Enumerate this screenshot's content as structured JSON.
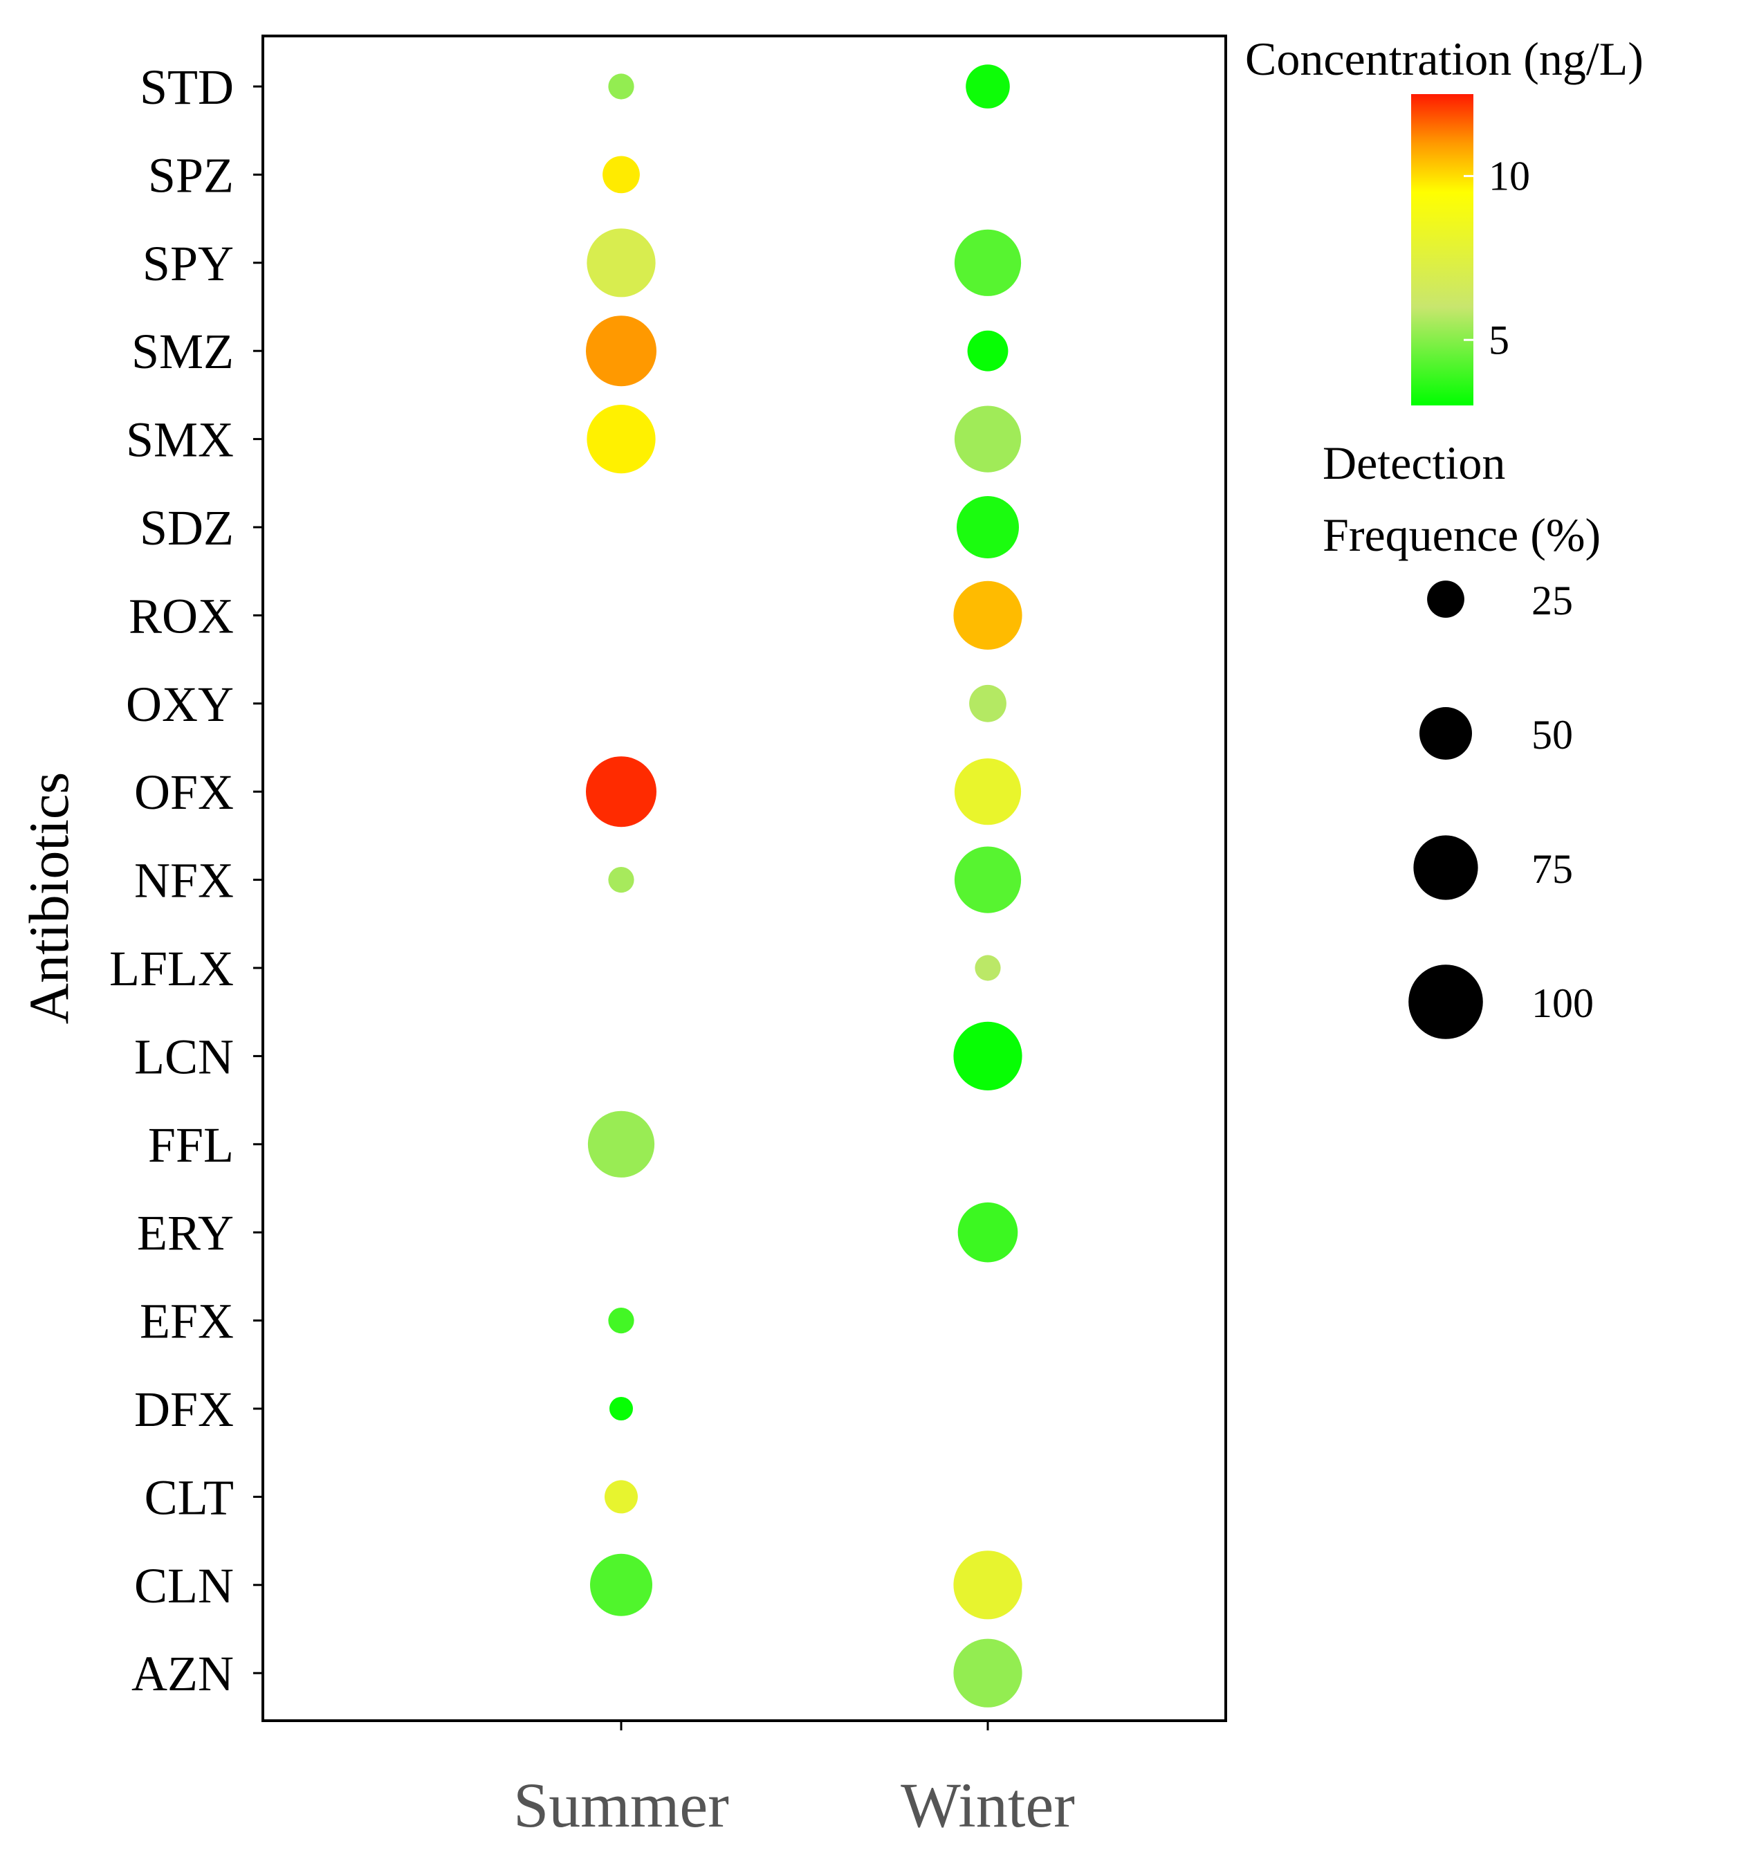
{
  "chart_data": {
    "type": "bubble",
    "title": "",
    "xlabel": "",
    "ylabel": "Antibiotics",
    "x_categories": [
      "Summer",
      "Winter"
    ],
    "y_categories": [
      "STD",
      "SPZ",
      "SPY",
      "SMZ",
      "SMX",
      "SDZ",
      "ROX",
      "OXY",
      "OFX",
      "NFX",
      "LFLX",
      "LCN",
      "FFL",
      "ERY",
      "EFX",
      "DFX",
      "CLT",
      "CLN",
      "AZN"
    ],
    "points": [
      {
        "season": "Summer",
        "antibiotic": "STD",
        "concentration": 5.2,
        "frequency": 12
      },
      {
        "season": "Summer",
        "antibiotic": "SPZ",
        "concentration": 9.8,
        "frequency": 25
      },
      {
        "season": "Summer",
        "antibiotic": "SPY",
        "concentration": 7.0,
        "frequency": 85
      },
      {
        "season": "Summer",
        "antibiotic": "SMZ",
        "concentration": 11.0,
        "frequency": 90
      },
      {
        "season": "Summer",
        "antibiotic": "SMX",
        "concentration": 9.7,
        "frequency": 85
      },
      {
        "season": "Summer",
        "antibiotic": "OFX",
        "concentration": 12.3,
        "frequency": 90
      },
      {
        "season": "Summer",
        "antibiotic": "NFX",
        "concentration": 5.5,
        "frequency": 12
      },
      {
        "season": "Summer",
        "antibiotic": "FFL",
        "concentration": 5.3,
        "frequency": 80
      },
      {
        "season": "Summer",
        "antibiotic": "EFX",
        "concentration": 4.0,
        "frequency": 12
      },
      {
        "season": "Summer",
        "antibiotic": "DFX",
        "concentration": 3.1,
        "frequency": 10
      },
      {
        "season": "Summer",
        "antibiotic": "CLT",
        "concentration": 8.0,
        "frequency": 20
      },
      {
        "season": "Summer",
        "antibiotic": "CLN",
        "concentration": 4.2,
        "frequency": 70
      },
      {
        "season": "Winter",
        "antibiotic": "STD",
        "concentration": 3.2,
        "frequency": 35
      },
      {
        "season": "Winter",
        "antibiotic": "SPY",
        "concentration": 4.3,
        "frequency": 80
      },
      {
        "season": "Winter",
        "antibiotic": "SMZ",
        "concentration": 3.1,
        "frequency": 30
      },
      {
        "season": "Winter",
        "antibiotic": "SMX",
        "concentration": 5.4,
        "frequency": 80
      },
      {
        "season": "Winter",
        "antibiotic": "SDZ",
        "concentration": 3.4,
        "frequency": 70
      },
      {
        "season": "Winter",
        "antibiotic": "ROX",
        "concentration": 10.5,
        "frequency": 85
      },
      {
        "season": "Winter",
        "antibiotic": "OXY",
        "concentration": 5.7,
        "frequency": 25
      },
      {
        "season": "Winter",
        "antibiotic": "OFX",
        "concentration": 8.1,
        "frequency": 80
      },
      {
        "season": "Winter",
        "antibiotic": "NFX",
        "concentration": 4.3,
        "frequency": 80
      },
      {
        "season": "Winter",
        "antibiotic": "LFLX",
        "concentration": 5.8,
        "frequency": 12
      },
      {
        "season": "Winter",
        "antibiotic": "LCN",
        "concentration": 3.1,
        "frequency": 85
      },
      {
        "season": "Winter",
        "antibiotic": "ERY",
        "concentration": 3.9,
        "frequency": 65
      },
      {
        "season": "Winter",
        "antibiotic": "CLN",
        "concentration": 8.0,
        "frequency": 85
      },
      {
        "season": "Winter",
        "antibiotic": "AZN",
        "concentration": 5.2,
        "frequency": 85
      }
    ],
    "color_scale": {
      "title": "Concentration (ng/L)",
      "min": 3,
      "max": 12.5,
      "stops": [
        {
          "value": 3,
          "color": "#00ff00"
        },
        {
          "value": 6,
          "color": "#c8e66e"
        },
        {
          "value": 9.5,
          "color": "#ffff00"
        },
        {
          "value": 11,
          "color": "#ff9900"
        },
        {
          "value": 12.5,
          "color": "#ff1a00"
        }
      ],
      "ticks": [
        5,
        10
      ]
    },
    "size_scale": {
      "title_lines": [
        "Detection",
        "Frequence (%)"
      ],
      "ticks": [
        25,
        50,
        75,
        100
      ],
      "legend_color": "#000000"
    }
  }
}
